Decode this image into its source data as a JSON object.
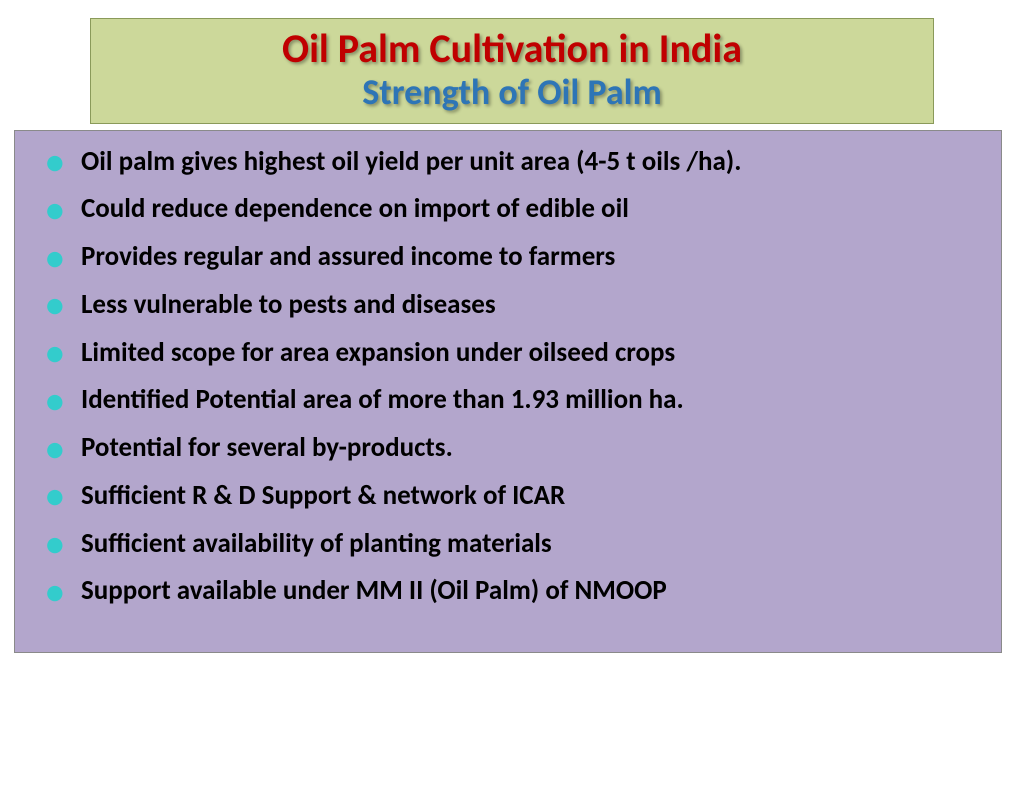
{
  "header": {
    "title": "Oil Palm Cultivation  in India",
    "title_color": "#c00000",
    "title_fontsize": 40,
    "subtitle": "Strength of Oil Palm",
    "subtitle_color": "#2e75b6",
    "subtitle_fontsize": 36,
    "background": "#ccd89a",
    "border_color": "#8a9a5a"
  },
  "content": {
    "background": "#b3a6cc",
    "bullet_color": "#33cccc",
    "text_color": "#000000",
    "fontsize": 27,
    "items": [
      "Oil  palm gives highest oil yield per unit area (4-5 t oils /ha).",
      "Could reduce dependence on import of edible oil",
      "Provides regular and assured income to  farmers",
      "Less vulnerable to pests and diseases",
      "Limited scope for area  expansion under oilseed crops",
      "Identified Potential  area of more than 1.93 million ha.",
      "Potential for several by-products.",
      "Sufficient R & D Support & network of ICAR",
      "Sufficient availability of planting materials",
      "Support available under MM II (Oil Palm) of NMOOP"
    ]
  }
}
